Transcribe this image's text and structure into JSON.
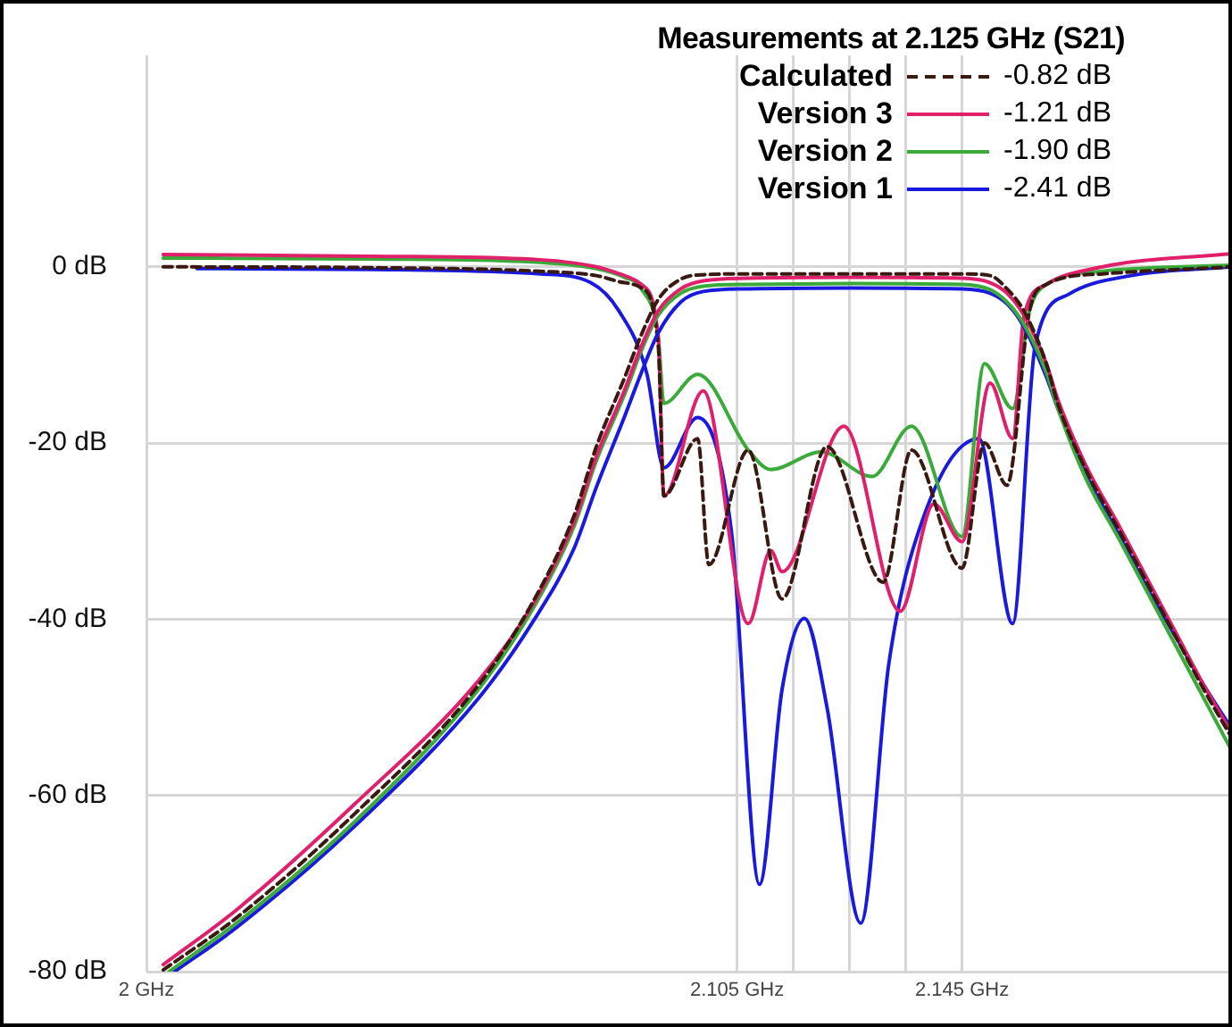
{
  "chart_data": {
    "type": "line",
    "legend_title": "Measurements at 2.125 GHz (S21)",
    "legend": "top right",
    "grid": true,
    "marker": "none",
    "annotations": [
      "-0.82 dB",
      "-1.21 dB",
      "-1.90 dB",
      "-2.41 dB"
    ],
    "xlim": [
      2.0,
      2.193
    ],
    "xticks": [
      {
        "value": 2.0,
        "label": "2 GHz"
      },
      {
        "value": 2.105,
        "label": "2.105 GHz"
      },
      {
        "value": 2.115,
        "label": null
      },
      {
        "value": 2.125,
        "label": null
      },
      {
        "value": 2.135,
        "label": null
      },
      {
        "value": 2.145,
        "label": "2.145 GHz"
      }
    ],
    "ylim": [
      -80,
      24
    ],
    "yticks": [
      {
        "value": 0,
        "label": "0 dB"
      },
      {
        "value": -20,
        "label": "-20 dB"
      },
      {
        "value": -40,
        "label": "-40 dB"
      },
      {
        "value": -60,
        "label": "-60 dB"
      },
      {
        "value": -80,
        "label": "-80 dB"
      }
    ],
    "series": [
      {
        "name": "Calculated",
        "color": "#3a1a10",
        "line_style": "dashed",
        "x": [
          2.003,
          2.016,
          2.037,
          2.059,
          2.069,
          2.076,
          2.08,
          2.085,
          2.088,
          2.091,
          2.095,
          2.099,
          2.107,
          2.125,
          2.145,
          2.15,
          2.153,
          2.156,
          2.16,
          2.162,
          2.167,
          2.173,
          2.178,
          2.183,
          2.188,
          2.193
        ],
        "values": [
          -79.8,
          -73.9,
          -62.1,
          -47.5,
          -37.7,
          -28.3,
          -20.4,
          -12.6,
          -7.7,
          -3.7,
          -1.4,
          -0.9,
          -0.8,
          -0.8,
          -0.8,
          -1,
          -2.5,
          -5,
          -11,
          -15.5,
          -23,
          -30,
          -36,
          -42,
          -48,
          -53.5
        ]
      },
      {
        "name": "Version 3",
        "color": "#e0206a",
        "line_style": "solid",
        "x": [
          2.003,
          2.016,
          2.037,
          2.059,
          2.069,
          2.076,
          2.08,
          2.085,
          2.088,
          2.091,
          2.095,
          2.099,
          2.107,
          2.125,
          2.145,
          2.15,
          2.153,
          2.156,
          2.16,
          2.162,
          2.167,
          2.173,
          2.178,
          2.183,
          2.188,
          2.193
        ],
        "values": [
          -79.2,
          -73,
          -61,
          -47,
          -38,
          -29,
          -21.5,
          -14,
          -9,
          -5,
          -2.5,
          -1.6,
          -1.3,
          -1.2,
          -1.3,
          -1.8,
          -3,
          -5.5,
          -11,
          -15,
          -22.5,
          -29.5,
          -35.5,
          -41.5,
          -47.5,
          -53
        ]
      },
      {
        "name": "Version 2",
        "color": "#3aaa3a",
        "line_style": "solid",
        "x": [
          2.004,
          2.016,
          2.037,
          2.059,
          2.069,
          2.076,
          2.08,
          2.085,
          2.088,
          2.091,
          2.095,
          2.099,
          2.107,
          2.125,
          2.145,
          2.15,
          2.153,
          2.156,
          2.16,
          2.162,
          2.167,
          2.173,
          2.178,
          2.183,
          2.188,
          2.193
        ],
        "values": [
          -80,
          -74.5,
          -63,
          -48,
          -38.5,
          -29.5,
          -22,
          -14.5,
          -9.5,
          -5.5,
          -3,
          -2.2,
          -2,
          -1.9,
          -2,
          -2.6,
          -4,
          -6.5,
          -12,
          -16,
          -24,
          -31,
          -37,
          -43,
          -49,
          -55
        ]
      },
      {
        "name": "Version 1",
        "color": "#1a1adf",
        "line_style": "solid",
        "x": [
          2.005,
          2.016,
          2.037,
          2.059,
          2.069,
          2.076,
          2.08,
          2.085,
          2.088,
          2.091,
          2.095,
          2.099,
          2.107,
          2.125,
          2.145,
          2.15,
          2.153,
          2.156,
          2.16,
          2.162,
          2.167,
          2.173,
          2.178,
          2.183,
          2.188,
          2.193
        ],
        "values": [
          -80,
          -75,
          -63.5,
          -49,
          -40,
          -32,
          -25,
          -17,
          -12,
          -7.5,
          -4,
          -2.8,
          -2.5,
          -2.4,
          -2.5,
          -3,
          -4.2,
          -6.8,
          -12.5,
          -16,
          -23.5,
          -30.5,
          -36.5,
          -42,
          -47.5,
          -52.5
        ]
      },
      {
        "color": "#3a1a10",
        "line_style": "dashed",
        "x": [
          2.003,
          2.04,
          2.07,
          2.08,
          2.085,
          2.088,
          2.091,
          2.092,
          2.098,
          2.1,
          2.107,
          2.113,
          2.121,
          2.131,
          2.136,
          2.145,
          2.149,
          2.153,
          2.157,
          2.16,
          2.17,
          2.193
        ],
        "values": [
          0,
          -0.1,
          -0.5,
          -1,
          -1.8,
          -2.4,
          -9,
          -26,
          -19.5,
          -33.8,
          -20.8,
          -37.7,
          -20.4,
          -35.8,
          -20.8,
          -34.2,
          -20,
          -24.8,
          -5,
          -2,
          -0.8,
          0
        ]
      },
      {
        "color": "#e0206a",
        "line_style": "solid",
        "x": [
          2.003,
          2.04,
          2.07,
          2.08,
          2.085,
          2.088,
          2.091,
          2.092,
          2.099,
          2.107,
          2.111,
          2.113,
          2.124,
          2.134,
          2.14,
          2.145,
          2.15,
          2.154,
          2.156,
          2.16,
          2.17,
          2.193
        ],
        "values": [
          1.4,
          1.2,
          0.8,
          0,
          -1,
          -2,
          -8,
          -26,
          -14.1,
          -40.5,
          -32.2,
          -34.6,
          -18.1,
          -39.1,
          -26.9,
          -31.2,
          -13.2,
          -19.5,
          -5.7,
          -2,
          0,
          1.5
        ]
      },
      {
        "color": "#3aaa3a",
        "line_style": "solid",
        "x": [
          2.003,
          2.04,
          2.07,
          2.08,
          2.085,
          2.088,
          2.091,
          2.092,
          2.098,
          2.107,
          2.111,
          2.12,
          2.129,
          2.136,
          2.145,
          2.149,
          2.154,
          2.157,
          2.16,
          2.17,
          2.193
        ],
        "values": [
          1,
          0.9,
          0.5,
          -0.2,
          -1.2,
          -2.5,
          -8,
          -15.5,
          -12.2,
          -20.8,
          -23,
          -21,
          -23.8,
          -18.1,
          -30.6,
          -11,
          -16.1,
          -5,
          -2,
          -0.5,
          0.2
        ]
      },
      {
        "color": "#1a1adf",
        "line_style": "solid",
        "x": [
          2.009,
          2.04,
          2.07,
          2.079,
          2.084,
          2.089,
          2.092,
          2.098,
          2.104,
          2.109,
          2.113,
          2.117,
          2.121,
          2.127,
          2.132,
          2.138,
          2.148,
          2.154,
          2.158,
          2.164,
          2.175,
          2.193
        ],
        "values": [
          -0.2,
          -0.3,
          -0.8,
          -1.8,
          -5,
          -12.2,
          -22.8,
          -17.1,
          -30,
          -70.1,
          -48,
          -39.9,
          -50,
          -74.5,
          -45,
          -28.7,
          -19.5,
          -40.5,
          -9,
          -3.1,
          -1,
          0
        ]
      }
    ]
  }
}
